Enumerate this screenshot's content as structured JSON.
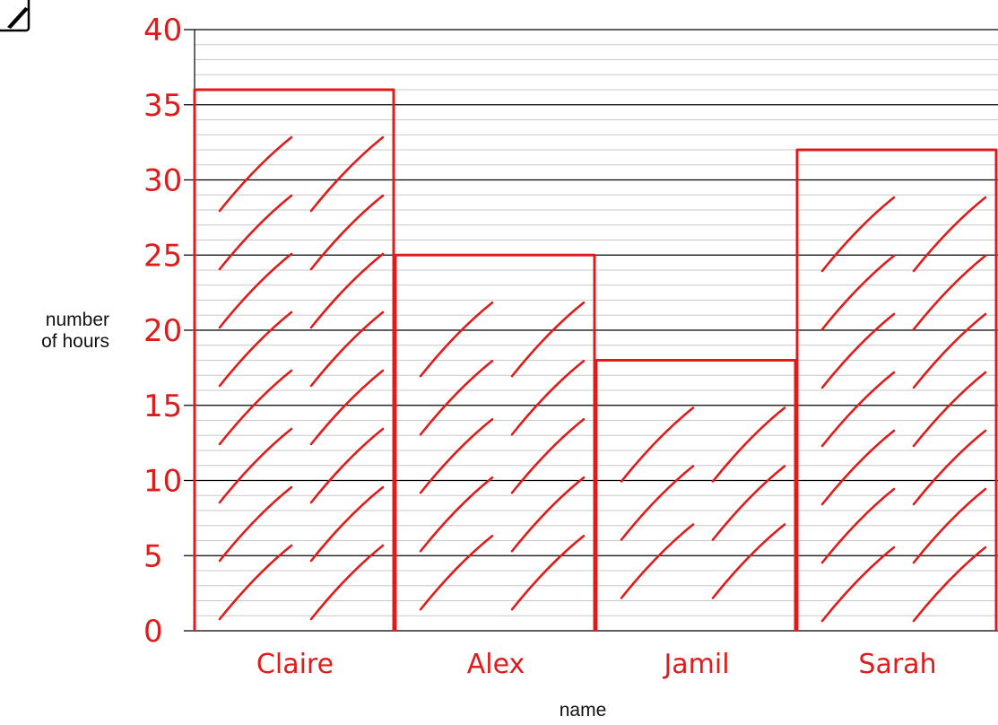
{
  "chart_data": {
    "type": "bar",
    "title": "",
    "xlabel": "name",
    "ylabel_lines": [
      "number",
      "of hours"
    ],
    "categories": [
      "Claire",
      "Alex",
      "Jamil",
      "Sarah"
    ],
    "values": [
      36,
      25,
      18,
      32
    ],
    "ylim": [
      0,
      40
    ],
    "yticks": [
      0,
      5,
      10,
      15,
      20,
      25,
      30,
      35,
      40
    ],
    "ytick_labels": [
      "0",
      "5",
      "10",
      "15",
      "20",
      "25",
      "30",
      "35",
      "40"
    ],
    "minor_step": 1,
    "grid": true,
    "hatched": true,
    "bar_color": "#e01b1b",
    "grid_major_color": "#000000",
    "grid_minor_color": "#c8c8c8"
  },
  "toolbar": {
    "icon": "pencil-edit-icon"
  }
}
